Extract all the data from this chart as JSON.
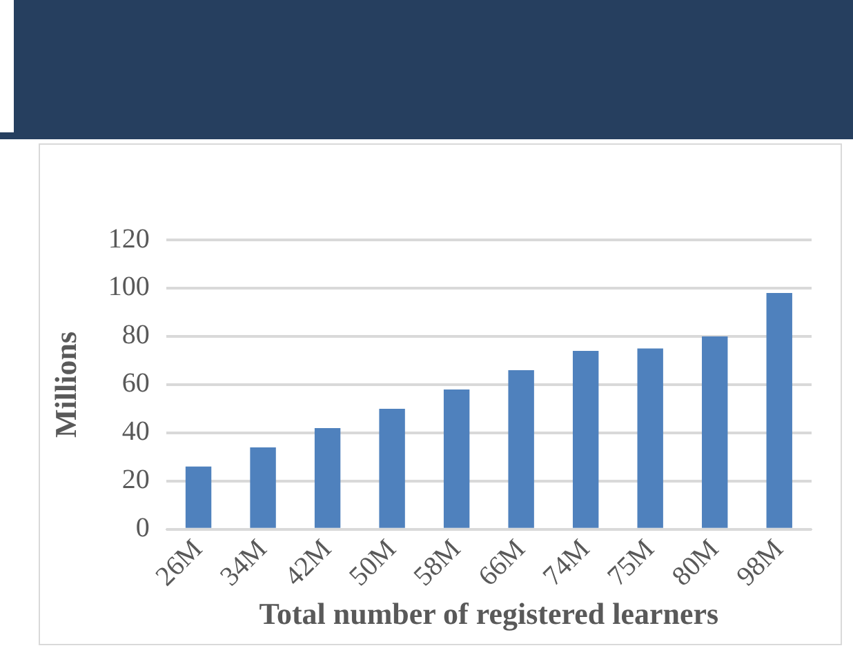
{
  "chart_data": {
    "type": "bar",
    "xlabel": "Total number of registered learners",
    "ylabel": "Millions",
    "categories": [
      "26M",
      "34M",
      "42M",
      "50M",
      "58M",
      "66M",
      "74M",
      "75M",
      "80M",
      "98M"
    ],
    "values": [
      26,
      34,
      42,
      50,
      58,
      66,
      74,
      75,
      80,
      98
    ],
    "color": "#4f81bd",
    "ylim": [
      0,
      120
    ],
    "yticks": [
      0,
      20,
      40,
      60,
      80,
      100,
      120
    ],
    "grid": "y"
  }
}
